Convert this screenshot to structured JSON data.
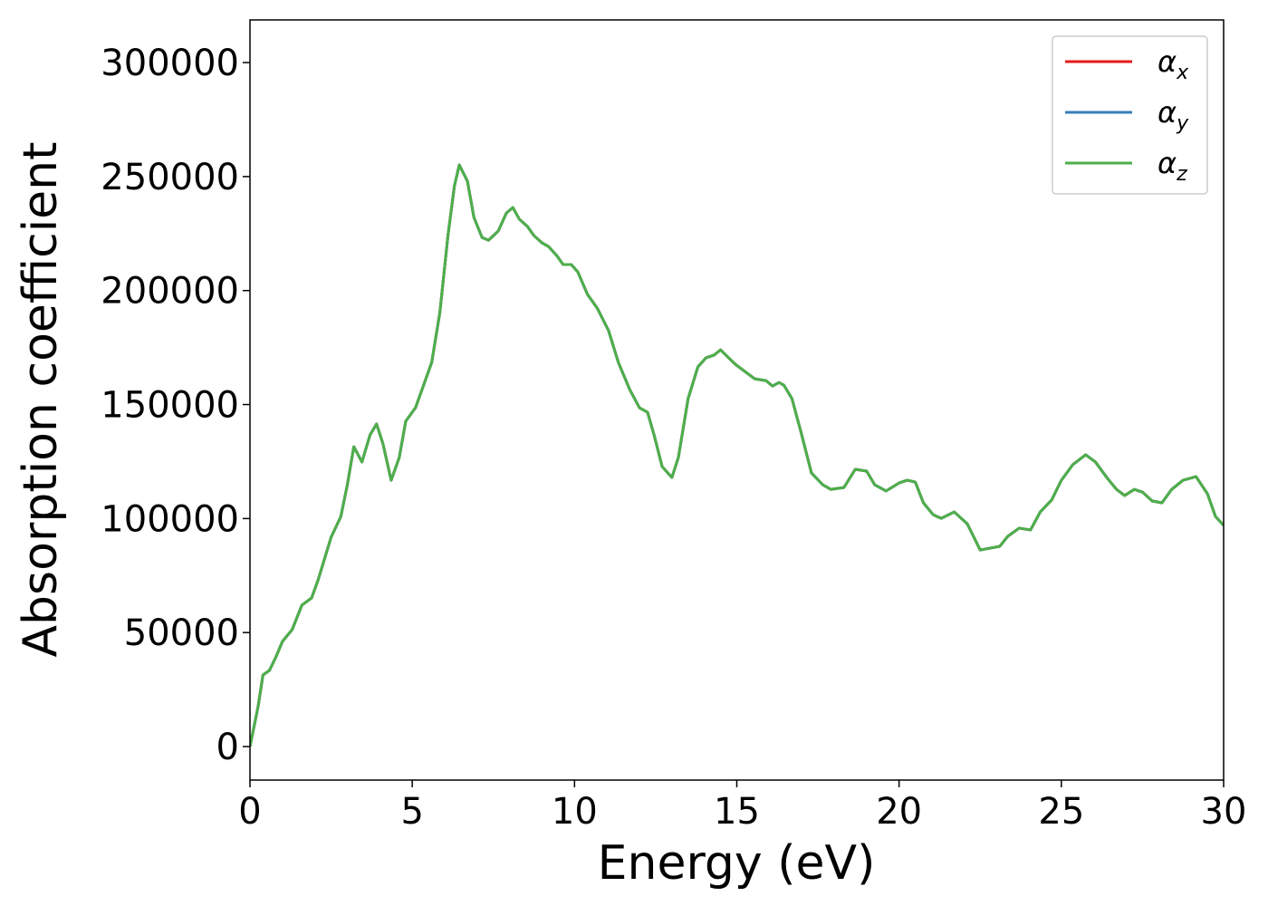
{
  "chart_data": {
    "type": "line",
    "xlabel": "Energy (eV)",
    "ylabel": "Absorption coefficient",
    "x": [
      0,
      0.25,
      0.4,
      0.6,
      0.8,
      1.0,
      1.3,
      1.6,
      1.9,
      2.1,
      2.5,
      2.8,
      3.0,
      3.2,
      3.45,
      3.7,
      3.9,
      4.1,
      4.35,
      4.6,
      4.8,
      5.1,
      5.35,
      5.6,
      5.85,
      6.1,
      6.3,
      6.45,
      6.7,
      6.9,
      7.15,
      7.35,
      7.65,
      7.9,
      8.1,
      8.3,
      8.55,
      8.75,
      9.0,
      9.2,
      9.45,
      9.65,
      9.9,
      10.1,
      10.4,
      10.7,
      11.05,
      11.35,
      11.7,
      12.0,
      12.25,
      12.45,
      12.7,
      13.0,
      13.2,
      13.5,
      13.8,
      14.05,
      14.3,
      14.5,
      14.75,
      14.95,
      15.25,
      15.55,
      15.9,
      16.1,
      16.3,
      16.45,
      16.7,
      17.0,
      17.3,
      17.65,
      17.9,
      18.3,
      18.65,
      19.0,
      19.25,
      19.6,
      20.0,
      20.25,
      20.5,
      20.75,
      21.05,
      21.3,
      21.7,
      22.1,
      22.5,
      22.8,
      23.1,
      23.35,
      23.7,
      24.05,
      24.35,
      24.7,
      25.0,
      25.35,
      25.75,
      26.05,
      26.4,
      26.7,
      26.95,
      27.25,
      27.5,
      27.8,
      28.1,
      28.4,
      28.75,
      29.15,
      29.5,
      29.75,
      30.0
    ],
    "series": [
      {
        "name": "αx",
        "color": "#e41a1c",
        "values": [
          0,
          17500,
          31400,
          33400,
          39300,
          46100,
          51300,
          62000,
          65200,
          73100,
          91800,
          100900,
          114800,
          131500,
          124800,
          136700,
          141500,
          132700,
          116800,
          126800,
          142700,
          148600,
          158500,
          168500,
          190300,
          224100,
          246000,
          255100,
          248000,
          232100,
          223300,
          222100,
          226100,
          234000,
          236400,
          231300,
          228100,
          224100,
          220900,
          219300,
          215400,
          211400,
          211400,
          208200,
          198300,
          192300,
          182400,
          168500,
          156600,
          148600,
          146600,
          136700,
          122800,
          118000,
          126800,
          152600,
          166500,
          170500,
          171700,
          174000,
          170500,
          167700,
          164500,
          161300,
          160500,
          158100,
          159700,
          158500,
          152600,
          136700,
          120000,
          114800,
          112800,
          113600,
          121600,
          120800,
          114800,
          112100,
          115600,
          116800,
          116000,
          106900,
          101700,
          100100,
          102900,
          97700,
          86200,
          87000,
          87800,
          92200,
          95800,
          95000,
          102900,
          108100,
          116800,
          123600,
          128000,
          124800,
          118000,
          112800,
          110100,
          112800,
          111600,
          107700,
          106900,
          112800,
          116800,
          118400,
          110900,
          100900,
          97000
        ]
      },
      {
        "name": "αy",
        "color": "#377eb8",
        "values": [
          0,
          17500,
          31400,
          33400,
          39300,
          46100,
          51300,
          62000,
          65200,
          73100,
          91800,
          100900,
          114800,
          131500,
          124800,
          136700,
          141500,
          132700,
          116800,
          126800,
          142700,
          148600,
          158500,
          168500,
          190300,
          224100,
          246000,
          255100,
          248000,
          232100,
          223300,
          222100,
          226100,
          234000,
          236400,
          231300,
          228100,
          224100,
          220900,
          219300,
          215400,
          211400,
          211400,
          208200,
          198300,
          192300,
          182400,
          168500,
          156600,
          148600,
          146600,
          136700,
          122800,
          118000,
          126800,
          152600,
          166500,
          170500,
          171700,
          174000,
          170500,
          167700,
          164500,
          161300,
          160500,
          158100,
          159700,
          158500,
          152600,
          136700,
          120000,
          114800,
          112800,
          113600,
          121600,
          120800,
          114800,
          112100,
          115600,
          116800,
          116000,
          106900,
          101700,
          100100,
          102900,
          97700,
          86200,
          87000,
          87800,
          92200,
          95800,
          95000,
          102900,
          108100,
          116800,
          123600,
          128000,
          124800,
          118000,
          112800,
          110100,
          112800,
          111600,
          107700,
          106900,
          112800,
          116800,
          118400,
          110900,
          100900,
          97000
        ]
      },
      {
        "name": "αz",
        "color": "#4daf4a",
        "values": [
          0,
          17500,
          31400,
          33400,
          39300,
          46100,
          51300,
          62000,
          65200,
          73100,
          91800,
          100900,
          114800,
          131500,
          124800,
          136700,
          141500,
          132700,
          116800,
          126800,
          142700,
          148600,
          158500,
          168500,
          190300,
          224100,
          246000,
          255100,
          248000,
          232100,
          223300,
          222100,
          226100,
          234000,
          236400,
          231300,
          228100,
          224100,
          220900,
          219300,
          215400,
          211400,
          211400,
          208200,
          198300,
          192300,
          182400,
          168500,
          156600,
          148600,
          146600,
          136700,
          122800,
          118000,
          126800,
          152600,
          166500,
          170500,
          171700,
          174000,
          170500,
          167700,
          164500,
          161300,
          160500,
          158100,
          159700,
          158500,
          152600,
          136700,
          120000,
          114800,
          112800,
          113600,
          121600,
          120800,
          114800,
          112100,
          115600,
          116800,
          116000,
          106900,
          101700,
          100100,
          102900,
          97700,
          86200,
          87000,
          87800,
          92200,
          95800,
          95000,
          102900,
          108100,
          116800,
          123600,
          128000,
          124800,
          118000,
          112800,
          110100,
          112800,
          111600,
          107700,
          106900,
          112800,
          116800,
          118400,
          110900,
          100900,
          97000
        ]
      }
    ],
    "xlim": [
      0,
      30
    ],
    "ylim": [
      -14700,
      318700
    ],
    "xticks": [
      0,
      5,
      10,
      15,
      20,
      25,
      30
    ],
    "yticks": [
      0,
      50000,
      100000,
      150000,
      200000,
      250000,
      300000
    ],
    "legend": "upper right",
    "grid": false
  }
}
